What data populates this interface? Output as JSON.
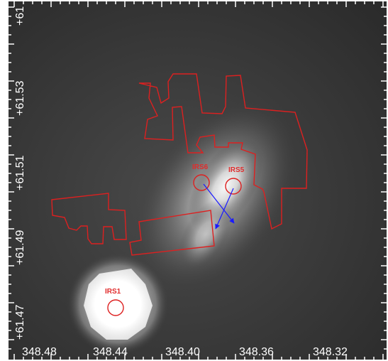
{
  "image": {
    "kind": "astronomical sky image",
    "colormap": "grayscale",
    "overlay_color": "#dd2020",
    "arrow_color": "#1a1aff"
  },
  "axes": {
    "x_ticks": [
      "348.48",
      "348.44",
      "348.40",
      "348.36",
      "348.32"
    ],
    "y_ticks": [
      "+61.47",
      "+61.49",
      "+61.51",
      "+61.53",
      "+61"
    ]
  },
  "sources": [
    {
      "name": "IRS6"
    },
    {
      "name": "IRS5"
    },
    {
      "name": "IRS1"
    }
  ]
}
